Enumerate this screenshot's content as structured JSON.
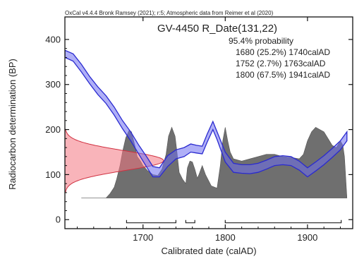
{
  "chart_data": {
    "type": "area",
    "credit": "OxCal v4.4.4 Bronk Ramsey (2021); r:5; Atmospheric data from Reimer et al (2020)",
    "title": "GV-4450 R_Date(131,22)",
    "xlabel": "Calibrated date (calAD)",
    "ylabel": "Radiocarbon determination (BP)",
    "xlim": [
      1605,
      1955
    ],
    "ylim": [
      -20,
      450
    ],
    "x_ticks": [
      1700,
      1800,
      1900
    ],
    "y_ticks": [
      0,
      100,
      200,
      300,
      400
    ],
    "probability_heading": "95.4% probability",
    "ranges_text": [
      "1680 (25.2%) 1740calAD",
      "1752 (2.7%) 1763calAD",
      "1800 (67.5%) 1941calAD"
    ],
    "ranges": [
      [
        1680,
        1740
      ],
      [
        1752,
        1763
      ],
      [
        1800,
        1941
      ]
    ],
    "measurement": {
      "mean": 131,
      "sd": 22
    },
    "posterior_baseline": 48,
    "calibration_curve": {
      "x": [
        1605,
        1615,
        1625,
        1635,
        1645,
        1655,
        1665,
        1675,
        1685,
        1695,
        1705,
        1712,
        1720,
        1730,
        1740,
        1750,
        1758,
        1765,
        1772,
        1778,
        1785,
        1790,
        1800,
        1810,
        1820,
        1830,
        1840,
        1850,
        1860,
        1870,
        1880,
        1890,
        1900,
        1910,
        1920,
        1930,
        1940,
        1948
      ],
      "upper": [
        376,
        368,
        345,
        318,
        295,
        275,
        250,
        220,
        195,
        165,
        138,
        118,
        115,
        142,
        155,
        160,
        168,
        165,
        163,
        190,
        218,
        195,
        150,
        125,
        122,
        122,
        125,
        132,
        140,
        142,
        140,
        130,
        115,
        128,
        142,
        158,
        175,
        195
      ],
      "lower": [
        360,
        352,
        328,
        302,
        278,
        258,
        232,
        202,
        175,
        145,
        115,
        95,
        95,
        118,
        135,
        140,
        150,
        148,
        146,
        172,
        200,
        178,
        128,
        105,
        103,
        102,
        105,
        112,
        120,
        122,
        120,
        110,
        95,
        108,
        122,
        138,
        155,
        175
      ]
    },
    "posterior": {
      "x": [
        1625,
        1655,
        1660,
        1665,
        1668,
        1672,
        1675,
        1679,
        1683,
        1686,
        1690,
        1693,
        1697,
        1700,
        1706,
        1712,
        1718,
        1723,
        1728,
        1731,
        1735,
        1739,
        1741,
        1744,
        1748,
        1752,
        1754,
        1757,
        1760,
        1763,
        1766,
        1768,
        1772,
        1776,
        1783,
        1790,
        1794,
        1797,
        1800,
        1803,
        1806,
        1810,
        1820,
        1830,
        1840,
        1850,
        1860,
        1870,
        1880,
        1890,
        1895,
        1900,
        1905,
        1910,
        1915,
        1920,
        1925,
        1930,
        1935,
        1940,
        1943,
        1945,
        1948
      ],
      "y": [
        48,
        48,
        58,
        72,
        90,
        120,
        150,
        182,
        198,
        195,
        165,
        140,
        130,
        120,
        108,
        100,
        98,
        112,
        145,
        185,
        205,
        185,
        155,
        105,
        90,
        80,
        115,
        130,
        128,
        112,
        92,
        100,
        120,
        100,
        75,
        70,
        120,
        175,
        205,
        175,
        150,
        135,
        130,
        135,
        140,
        145,
        145,
        140,
        138,
        135,
        145,
        175,
        195,
        205,
        200,
        195,
        180,
        165,
        160,
        175,
        165,
        140,
        48
      ]
    },
    "likelihood_curve": {
      "note": "Gaussian density of the radiocarbon measurement drawn along the y axis"
    }
  }
}
